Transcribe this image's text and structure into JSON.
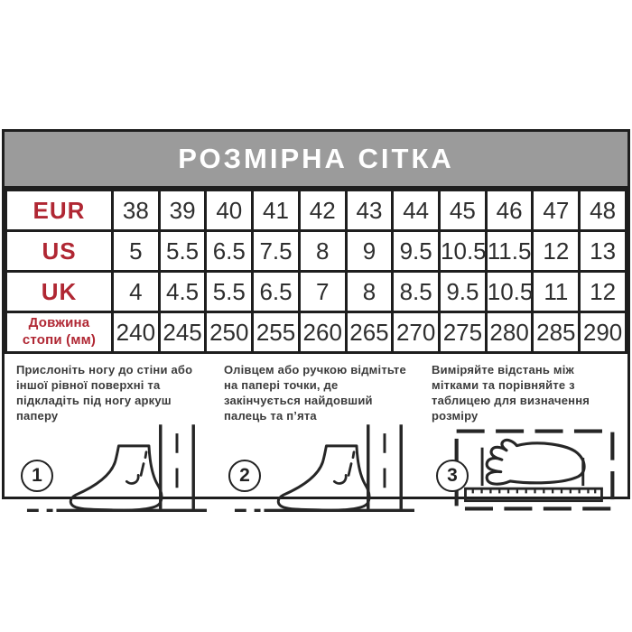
{
  "title": "РОЗМІРНА СІТКА",
  "table": {
    "rows": [
      {
        "label": "EUR",
        "values": [
          "38",
          "39",
          "40",
          "41",
          "42",
          "43",
          "44",
          "45",
          "46",
          "47",
          "48"
        ]
      },
      {
        "label": "US",
        "values": [
          "5",
          "5.5",
          "6.5",
          "7.5",
          "8",
          "9",
          "9.5",
          "10.5",
          "11.5",
          "12",
          "13"
        ]
      },
      {
        "label": "UK",
        "values": [
          "4",
          "4.5",
          "5.5",
          "6.5",
          "7",
          "8",
          "8.5",
          "9.5",
          "10.5",
          "11",
          "12"
        ]
      },
      {
        "label": "Довжина стопи (мм)",
        "values": [
          "240",
          "245",
          "250",
          "255",
          "260",
          "265",
          "270",
          "275",
          "280",
          "285",
          "290"
        ]
      }
    ]
  },
  "steps": [
    {
      "number": "1",
      "text": "Прислоніть ногу до стіни або іншої рівної поверхні та підкладіть під ногу аркуш паперу"
    },
    {
      "number": "2",
      "text": "Олівцем або ручкою відмітьте на папері точки, де закінчується найдовший палець та п’ята"
    },
    {
      "number": "3",
      "text": "Виміряйте відстань між мітками та порівняйте з таблицею для визначення розміру"
    }
  ],
  "icons": [
    "foot-against-wall-icon",
    "foot-against-wall-icon",
    "foot-ruler-measure-icon"
  ],
  "colors": {
    "accent_red": "#b02733",
    "header_gray": "#9b9b9b",
    "border_black": "#1e1e1e",
    "value_text": "#2e2e2e"
  }
}
